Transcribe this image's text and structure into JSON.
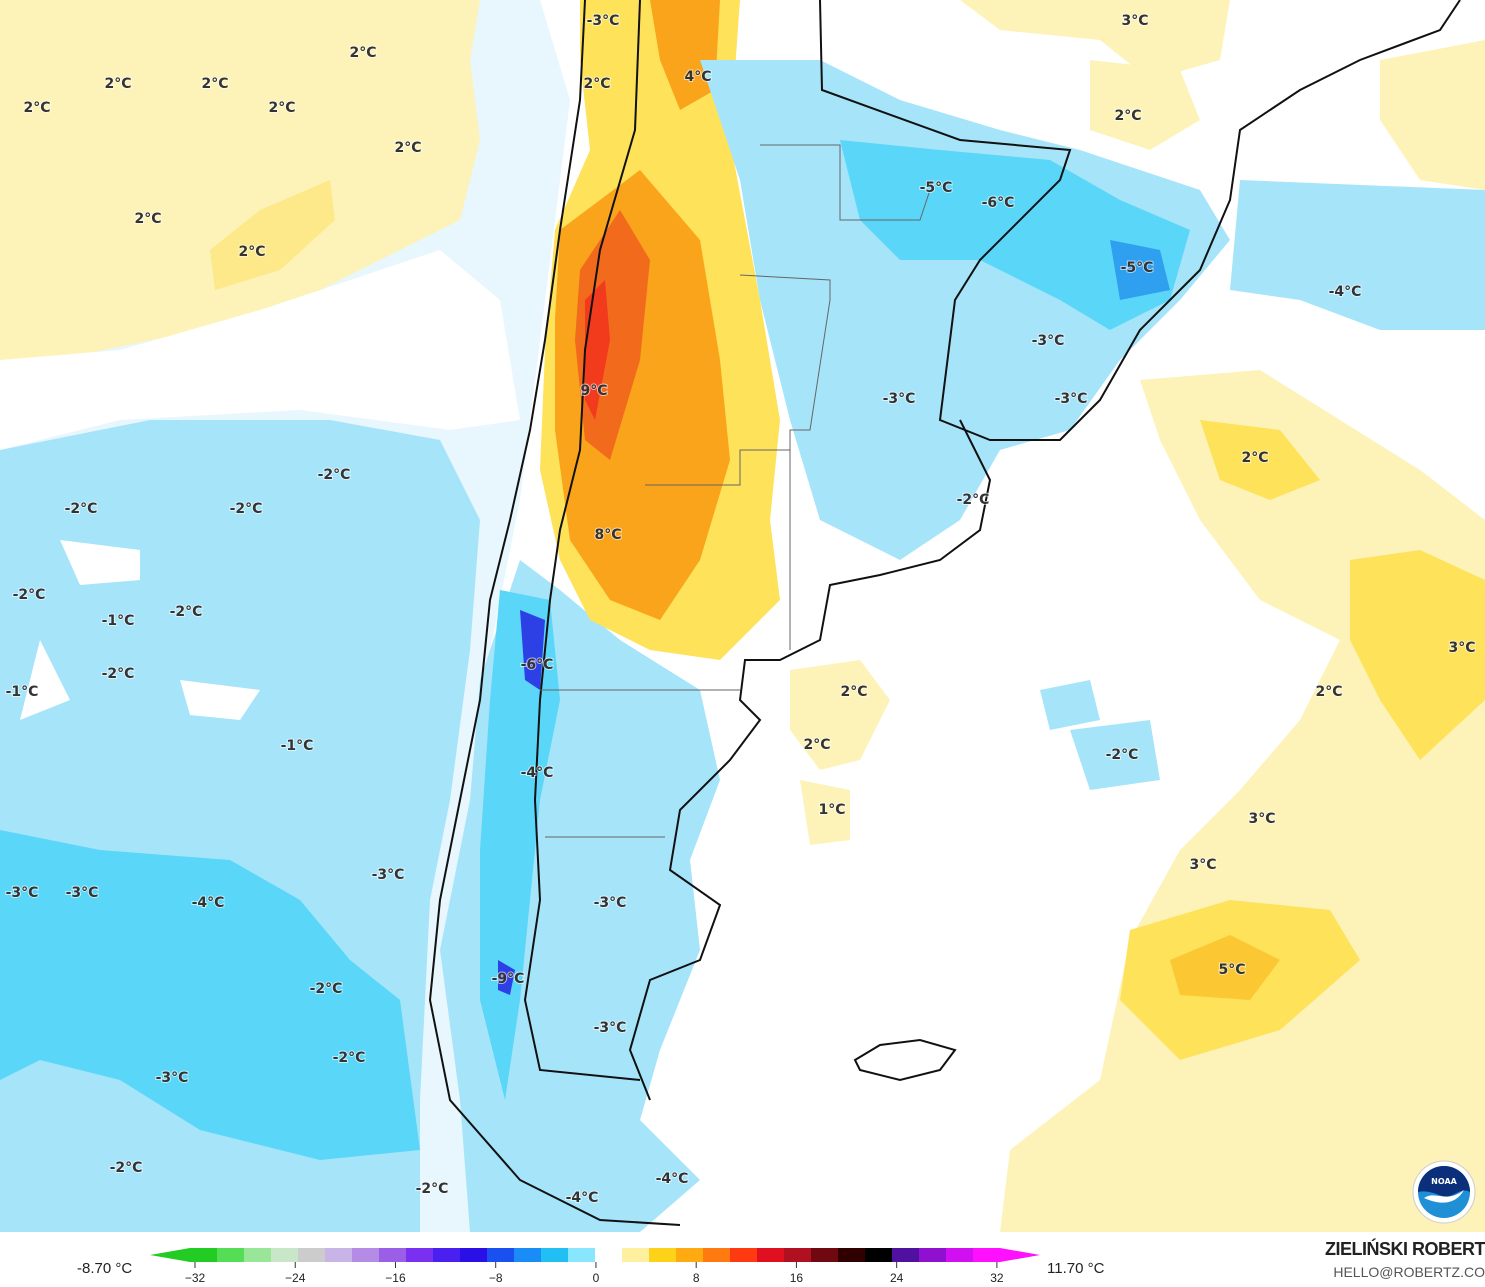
{
  "map": {
    "type": "temperature anomaly map",
    "region": "southern South America",
    "colors": {
      "ocean_base": "#e8f6fd",
      "cold_light": "#a6e4fa",
      "cold_mid": "#5ad6f8",
      "cold_deep": "#2f9ff0",
      "cold_extreme": "#2d40e6",
      "warm_light": "#fdf3b8",
      "warm_mid": "#fde25a",
      "warm_orange": "#f9a41b",
      "warm_red": "#f23a1c",
      "neutral": "#ffffff"
    },
    "labels": [
      "2°C",
      "2°C",
      "2°C",
      "2°C",
      "2°C",
      "2°C",
      "2°C",
      "2°C",
      "-3°C",
      "4°C",
      "2°C",
      "3°C",
      "2°C",
      "-5°C",
      "-6°C",
      "-5°C",
      "-4°C",
      "-3°C",
      "-3°C",
      "-3°C",
      "9°C",
      "2°C",
      "-2°C",
      "-2°C",
      "-2°C",
      "-2°C",
      "8°C",
      "-2°C",
      "-2°C",
      "-1°C",
      "-2°C",
      "-6°C",
      "3°C",
      "-1°C",
      "2°C",
      "2°C",
      "2°C",
      "-1°C",
      "-2°C",
      "-4°C",
      "1°C",
      "3°C",
      "3°C",
      "-3°C",
      "-3°C",
      "-3°C",
      "-4°C",
      "-3°C",
      "5°C",
      "-9°C",
      "-2°C",
      "-3°C",
      "-2°C",
      "-3°C",
      "-2°C",
      "-4°C",
      "-2°C",
      "-4°C"
    ]
  },
  "legend": {
    "min_value": "-8.70 °C",
    "max_value": "11.70 °C",
    "ticks": [
      "−32",
      "−24",
      "−16",
      "−8",
      "0",
      "8",
      "16",
      "24",
      "32"
    ],
    "colors": [
      "#22cc22",
      "#55dd55",
      "#99e699",
      "#c8e6c8",
      "#cccccc",
      "#c8b4e6",
      "#b48ce6",
      "#9a5fe6",
      "#7a30f0",
      "#4a20f0",
      "#2a10e6",
      "#1a50f0",
      "#1a8cf5",
      "#22bff5",
      "#88e6ff",
      "#ffffff",
      "#fff0a0",
      "#ffd21a",
      "#ffaa10",
      "#ff7a10",
      "#ff3a10",
      "#e01020",
      "#b01020",
      "#700810",
      "#300000",
      "#000000",
      "#5010a0",
      "#9010d0",
      "#d010f0",
      "#ff10ff"
    ]
  },
  "branding": {
    "author": "ZIELIŃSKI ROBERT",
    "email": "HELLO@ROBERTZ.CO",
    "logo_text": "NOAA"
  }
}
